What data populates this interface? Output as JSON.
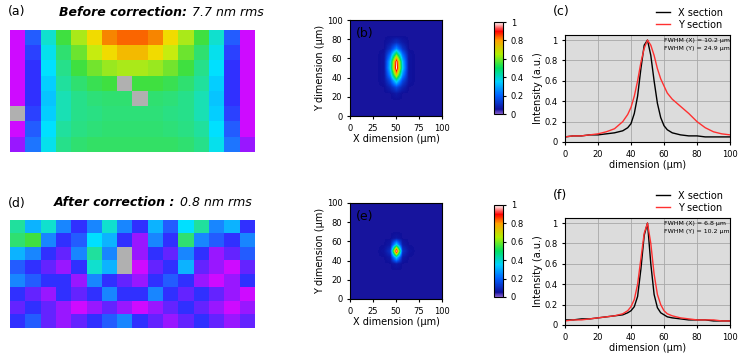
{
  "chart_data": [
    {
      "type": "heatmap",
      "label": "(a)",
      "title": "Before correction:",
      "subtitle": "7.7 nm rms",
      "tick_labels": false,
      "zlim": [
        0,
        1
      ],
      "cells": [
        [
          0.05,
          0.25,
          0.45,
          0.6,
          0.72,
          0.82,
          0.9,
          0.93,
          0.93,
          0.9,
          0.82,
          0.72,
          0.6,
          0.45,
          0.25,
          0.05
        ],
        [
          0.05,
          0.22,
          0.42,
          0.55,
          0.65,
          0.75,
          0.82,
          0.85,
          0.85,
          0.82,
          0.75,
          0.65,
          0.55,
          0.42,
          0.22,
          0.05
        ],
        [
          0.05,
          0.2,
          0.4,
          0.52,
          0.6,
          0.66,
          0.7,
          0.72,
          0.72,
          0.7,
          0.66,
          0.6,
          0.52,
          0.4,
          0.2,
          0.05
        ],
        [
          0.05,
          0.2,
          0.38,
          0.5,
          0.55,
          0.58,
          0.6,
          null,
          0.6,
          0.6,
          0.58,
          0.55,
          0.5,
          0.38,
          0.2,
          0.05
        ],
        [
          0.05,
          0.2,
          0.37,
          0.48,
          0.52,
          0.54,
          0.55,
          0.55,
          null,
          0.55,
          0.54,
          0.52,
          0.48,
          0.37,
          0.2,
          0.05
        ],
        [
          null,
          0.22,
          0.38,
          0.48,
          0.52,
          0.53,
          0.54,
          0.54,
          0.54,
          0.54,
          0.53,
          0.52,
          0.48,
          0.38,
          0.22,
          0.05
        ],
        [
          0.05,
          0.25,
          0.4,
          0.5,
          0.53,
          0.54,
          0.55,
          0.55,
          0.55,
          0.55,
          0.54,
          0.53,
          0.5,
          0.4,
          0.25,
          0.05
        ],
        [
          0.1,
          0.28,
          0.42,
          0.52,
          0.55,
          0.56,
          0.56,
          0.56,
          0.56,
          0.56,
          0.56,
          0.55,
          0.52,
          0.42,
          0.28,
          0.1
        ]
      ]
    },
    {
      "type": "image",
      "label": "(b)",
      "xlabel": "X dimension (µm)",
      "ylabel": "Y dimension (µm)",
      "xlim": [
        0,
        100
      ],
      "ylim": [
        0,
        100
      ],
      "xticks": [
        0,
        25,
        50,
        75,
        100
      ],
      "yticks": [
        0,
        20,
        40,
        60,
        80,
        100
      ],
      "colorbar_range": [
        0,
        1
      ],
      "colorbar_ticks": [
        0,
        0.2,
        0.4,
        0.6,
        0.8,
        1
      ],
      "cells": [
        [
          0.05,
          0.05,
          0.05,
          0.05,
          0.05,
          0.05,
          0.05,
          0.05,
          0.05,
          0.05,
          0.05,
          0.05,
          0.05,
          0.05,
          0.05
        ],
        [
          0.05,
          0.05,
          0.05,
          0.05,
          0.05,
          0.05,
          0.05,
          0.05,
          0.05,
          0.05,
          0.05,
          0.05,
          0.05,
          0.05,
          0.05
        ],
        [
          0.05,
          0.05,
          0.05,
          0.05,
          0.05,
          0.05,
          0.05,
          0.05,
          0.05,
          0.05,
          0.05,
          0.05,
          0.05,
          0.05,
          0.05
        ],
        [
          0.05,
          0.05,
          0.05,
          0.05,
          0.05,
          0.05,
          0.05,
          0.07,
          0.05,
          0.05,
          0.05,
          0.05,
          0.05,
          0.05,
          0.05
        ],
        [
          0.05,
          0.05,
          0.05,
          0.05,
          0.05,
          0.05,
          0.09,
          0.16,
          0.09,
          0.05,
          0.05,
          0.05,
          0.05,
          0.05,
          0.05
        ],
        [
          0.05,
          0.05,
          0.05,
          0.05,
          0.05,
          0.06,
          0.16,
          0.4,
          0.16,
          0.06,
          0.05,
          0.05,
          0.05,
          0.05,
          0.05
        ],
        [
          0.05,
          0.05,
          0.05,
          0.05,
          0.05,
          0.06,
          0.27,
          0.75,
          0.27,
          0.06,
          0.05,
          0.05,
          0.05,
          0.05,
          0.05
        ],
        [
          0.05,
          0.05,
          0.05,
          0.05,
          0.05,
          0.06,
          0.35,
          1.0,
          0.35,
          0.06,
          0.05,
          0.05,
          0.05,
          0.05,
          0.05
        ],
        [
          0.05,
          0.05,
          0.05,
          0.05,
          0.05,
          0.06,
          0.33,
          0.95,
          0.33,
          0.06,
          0.05,
          0.05,
          0.05,
          0.05,
          0.05
        ],
        [
          0.05,
          0.05,
          0.05,
          0.05,
          0.05,
          0.06,
          0.23,
          0.61,
          0.23,
          0.06,
          0.05,
          0.05,
          0.05,
          0.05,
          0.05
        ],
        [
          0.05,
          0.05,
          0.05,
          0.05,
          0.05,
          0.05,
          0.12,
          0.27,
          0.12,
          0.05,
          0.05,
          0.05,
          0.05,
          0.05,
          0.05
        ],
        [
          0.05,
          0.05,
          0.05,
          0.05,
          0.05,
          0.05,
          0.07,
          0.11,
          0.07,
          0.05,
          0.05,
          0.05,
          0.05,
          0.05,
          0.05
        ],
        [
          0.05,
          0.05,
          0.05,
          0.05,
          0.05,
          0.05,
          0.05,
          0.05,
          0.05,
          0.05,
          0.05,
          0.05,
          0.05,
          0.05,
          0.05
        ],
        [
          0.05,
          0.05,
          0.05,
          0.05,
          0.05,
          0.05,
          0.05,
          0.05,
          0.05,
          0.05,
          0.05,
          0.05,
          0.05,
          0.05,
          0.05
        ],
        [
          0.05,
          0.05,
          0.05,
          0.05,
          0.05,
          0.05,
          0.05,
          0.05,
          0.05,
          0.05,
          0.05,
          0.05,
          0.05,
          0.05,
          0.05
        ]
      ]
    },
    {
      "type": "line",
      "label": "(c)",
      "xlabel": "dimension (µm)",
      "ylabel": "Intensity (a.u.)",
      "annotations": [
        "FWHM (X) = 10.2 µm",
        "FWHM (Y) = 24.9 µm"
      ],
      "xlim": [
        0,
        100
      ],
      "ylim": [
        0,
        1.05
      ],
      "xticks": [
        0,
        20,
        40,
        60,
        80,
        100
      ],
      "yticks": [
        0,
        0.2,
        0.4,
        0.6,
        0.8,
        1
      ],
      "grid": true,
      "legend": "upper right",
      "x": [
        0,
        5,
        10,
        15,
        20,
        25,
        30,
        35,
        38,
        40,
        42,
        44,
        46,
        48,
        50,
        52,
        54,
        56,
        58,
        60,
        62,
        65,
        70,
        75,
        80,
        85,
        90,
        95,
        100
      ],
      "series": [
        {
          "name": "X section",
          "color": "#000000",
          "values": [
            0.05,
            0.06,
            0.06,
            0.07,
            0.07,
            0.08,
            0.09,
            0.11,
            0.14,
            0.18,
            0.28,
            0.45,
            0.72,
            0.95,
            1.0,
            0.85,
            0.6,
            0.38,
            0.24,
            0.16,
            0.12,
            0.09,
            0.07,
            0.06,
            0.06,
            0.05,
            0.05,
            0.05,
            0.05
          ]
        },
        {
          "name": "Y section",
          "color": "#ff3030",
          "values": [
            0.05,
            0.06,
            0.06,
            0.07,
            0.08,
            0.1,
            0.13,
            0.2,
            0.27,
            0.34,
            0.45,
            0.6,
            0.78,
            0.92,
            1.0,
            0.95,
            0.85,
            0.72,
            0.62,
            0.55,
            0.48,
            0.42,
            0.35,
            0.28,
            0.2,
            0.14,
            0.1,
            0.08,
            0.07
          ]
        }
      ]
    },
    {
      "type": "heatmap",
      "label": "(d)",
      "title": "After correction :",
      "subtitle": "0.8 nm rms",
      "tick_labels": false,
      "zlim": [
        0,
        1
      ],
      "cells": [
        [
          0.5,
          0.35,
          0.45,
          0.3,
          0.2,
          0.3,
          0.45,
          0.3,
          0.2,
          0.35,
          0.25,
          0.4,
          0.5,
          0.3,
          0.35,
          0.2
        ],
        [
          0.55,
          0.6,
          0.3,
          0.2,
          0.25,
          0.4,
          0.35,
          0.2,
          0.1,
          0.3,
          0.2,
          0.55,
          0.3,
          0.25,
          0.2,
          0.3
        ],
        [
          0.35,
          0.3,
          0.2,
          0.15,
          0.3,
          0.5,
          0.3,
          null,
          0.1,
          0.2,
          0.15,
          0.3,
          0.2,
          0.1,
          0.15,
          0.25
        ],
        [
          0.25,
          0.2,
          0.15,
          0.1,
          0.2,
          0.45,
          0.35,
          null,
          0.05,
          0.15,
          0.2,
          0.35,
          0.15,
          0.1,
          0.05,
          0.15
        ],
        [
          0.3,
          0.25,
          0.2,
          0.2,
          0.1,
          0.3,
          0.2,
          0.15,
          0.1,
          0.2,
          0.25,
          0.2,
          0.1,
          0.05,
          0.1,
          0.2
        ],
        [
          0.2,
          0.15,
          0.1,
          0.2,
          0.15,
          0.2,
          0.3,
          0.2,
          0.2,
          0.3,
          0.2,
          0.15,
          0.2,
          0.15,
          0.1,
          0.05
        ],
        [
          0.15,
          0.2,
          0.15,
          0.1,
          0.05,
          0.1,
          0.15,
          0.1,
          0.05,
          0.1,
          0.15,
          0.2,
          0.15,
          0.1,
          0.05,
          0.1
        ],
        [
          0.2,
          0.25,
          0.15,
          0.1,
          0.15,
          0.2,
          0.25,
          0.3,
          0.2,
          0.15,
          0.1,
          0.15,
          0.2,
          0.15,
          0.1,
          0.15
        ]
      ]
    },
    {
      "type": "image",
      "label": "(e)",
      "xlabel": "X dimension (µm)",
      "ylabel": "Y dimension (µm)",
      "xlim": [
        0,
        100
      ],
      "ylim": [
        0,
        100
      ],
      "xticks": [
        0,
        25,
        50,
        75,
        100
      ],
      "yticks": [
        0,
        20,
        40,
        60,
        80,
        100
      ],
      "colorbar_range": [
        0,
        1
      ],
      "colorbar_ticks": [
        0,
        0.2,
        0.4,
        0.6,
        0.8,
        1
      ],
      "cells": [
        [
          0.05,
          0.05,
          0.05,
          0.05,
          0.05,
          0.05,
          0.05,
          0.05,
          0.05,
          0.05,
          0.05,
          0.05,
          0.05,
          0.05,
          0.05
        ],
        [
          0.05,
          0.05,
          0.05,
          0.05,
          0.05,
          0.05,
          0.05,
          0.05,
          0.05,
          0.05,
          0.05,
          0.05,
          0.05,
          0.05,
          0.05
        ],
        [
          0.05,
          0.05,
          0.05,
          0.05,
          0.05,
          0.05,
          0.05,
          0.05,
          0.05,
          0.05,
          0.05,
          0.05,
          0.05,
          0.05,
          0.05
        ],
        [
          0.05,
          0.05,
          0.05,
          0.05,
          0.05,
          0.05,
          0.05,
          0.05,
          0.05,
          0.05,
          0.05,
          0.05,
          0.05,
          0.05,
          0.05
        ],
        [
          0.05,
          0.05,
          0.05,
          0.05,
          0.05,
          0.05,
          0.05,
          0.05,
          0.05,
          0.05,
          0.05,
          0.05,
          0.05,
          0.05,
          0.05
        ],
        [
          0.05,
          0.05,
          0.05,
          0.05,
          0.05,
          0.05,
          0.05,
          0.07,
          0.05,
          0.05,
          0.05,
          0.05,
          0.05,
          0.05,
          0.05
        ],
        [
          0.05,
          0.05,
          0.05,
          0.05,
          0.05,
          0.05,
          0.07,
          0.36,
          0.07,
          0.05,
          0.05,
          0.05,
          0.05,
          0.05,
          0.05
        ],
        [
          0.05,
          0.05,
          0.05,
          0.05,
          0.05,
          0.06,
          0.12,
          1.0,
          0.12,
          0.06,
          0.05,
          0.05,
          0.05,
          0.05,
          0.05
        ],
        [
          0.05,
          0.05,
          0.05,
          0.05,
          0.05,
          0.05,
          0.07,
          0.36,
          0.07,
          0.05,
          0.05,
          0.05,
          0.05,
          0.05,
          0.05
        ],
        [
          0.05,
          0.05,
          0.05,
          0.05,
          0.05,
          0.05,
          0.05,
          0.07,
          0.05,
          0.05,
          0.05,
          0.05,
          0.05,
          0.05,
          0.05
        ],
        [
          0.05,
          0.05,
          0.05,
          0.05,
          0.05,
          0.05,
          0.05,
          0.05,
          0.05,
          0.05,
          0.05,
          0.05,
          0.05,
          0.05,
          0.05
        ],
        [
          0.05,
          0.05,
          0.05,
          0.05,
          0.05,
          0.05,
          0.05,
          0.05,
          0.05,
          0.05,
          0.05,
          0.05,
          0.05,
          0.05,
          0.05
        ],
        [
          0.05,
          0.05,
          0.05,
          0.05,
          0.05,
          0.05,
          0.05,
          0.05,
          0.05,
          0.05,
          0.05,
          0.05,
          0.05,
          0.05,
          0.05
        ],
        [
          0.05,
          0.05,
          0.05,
          0.05,
          0.05,
          0.05,
          0.05,
          0.05,
          0.05,
          0.05,
          0.05,
          0.05,
          0.05,
          0.05,
          0.05
        ],
        [
          0.05,
          0.05,
          0.05,
          0.05,
          0.05,
          0.05,
          0.05,
          0.05,
          0.05,
          0.05,
          0.05,
          0.05,
          0.05,
          0.05,
          0.05
        ]
      ]
    },
    {
      "type": "line",
      "label": "(f)",
      "xlabel": "dimension (µm)",
      "ylabel": "Intensity (a.u.)",
      "annotations": [
        "FWHM (X) = 6.8 µm",
        "FWHM (Y) = 10.2 µm"
      ],
      "xlim": [
        0,
        100
      ],
      "ylim": [
        0,
        1.05
      ],
      "xticks": [
        0,
        20,
        40,
        60,
        80,
        100
      ],
      "yticks": [
        0,
        0.2,
        0.4,
        0.6,
        0.8,
        1
      ],
      "grid": true,
      "legend": "upper right",
      "x": [
        0,
        5,
        10,
        15,
        20,
        25,
        30,
        35,
        38,
        40,
        42,
        44,
        46,
        48,
        50,
        52,
        54,
        56,
        58,
        60,
        62,
        65,
        70,
        75,
        80,
        85,
        90,
        95,
        100
      ],
      "series": [
        {
          "name": "X section",
          "color": "#000000",
          "values": [
            0.05,
            0.05,
            0.06,
            0.06,
            0.07,
            0.08,
            0.09,
            0.1,
            0.12,
            0.14,
            0.18,
            0.28,
            0.55,
            0.88,
            1.0,
            0.6,
            0.3,
            0.17,
            0.12,
            0.1,
            0.08,
            0.07,
            0.06,
            0.05,
            0.05,
            0.05,
            0.04,
            0.04,
            0.04
          ]
        },
        {
          "name": "Y section",
          "color": "#ff3030",
          "values": [
            0.04,
            0.05,
            0.05,
            0.06,
            0.07,
            0.08,
            0.09,
            0.11,
            0.14,
            0.18,
            0.25,
            0.4,
            0.65,
            0.9,
            1.0,
            0.8,
            0.5,
            0.3,
            0.2,
            0.14,
            0.11,
            0.09,
            0.07,
            0.06,
            0.05,
            0.05,
            0.05,
            0.04,
            0.04
          ]
        }
      ]
    }
  ]
}
